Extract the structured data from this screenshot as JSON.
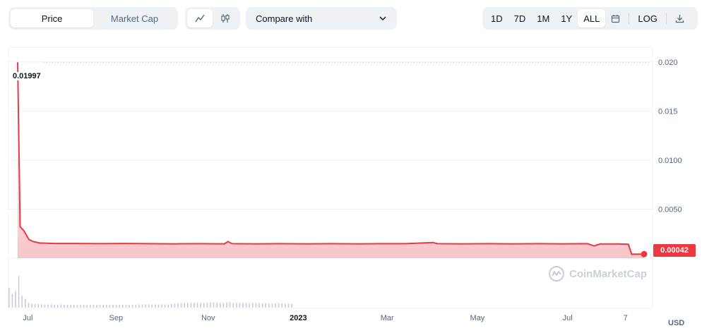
{
  "toolbar": {
    "type_options": [
      "Price",
      "Market Cap"
    ],
    "type_selected": "Price",
    "compare_label": "Compare with",
    "ranges": [
      "1D",
      "7D",
      "1M",
      "1Y",
      "ALL"
    ],
    "range_selected": "ALL",
    "log_label": "LOG"
  },
  "watermark_text": "CoinMarketCap",
  "currency_label": "USD",
  "peak_label": "0.01997",
  "last_price_label": "0.00042",
  "colors": {
    "line": "#ea3943",
    "fill_top": "#ffffff",
    "fill_bottom": "#f6c6c9",
    "grid": "#eff2f5",
    "axis_text": "#58667e"
  },
  "chart_data": {
    "type": "area",
    "ylabel": "",
    "xlabel": "",
    "ylim": [
      0,
      0.0215
    ],
    "yticks": [
      "0.020",
      "0.015",
      "0.0100",
      "0.0050"
    ],
    "ytick_values": [
      0.02,
      0.015,
      0.01,
      0.005
    ],
    "xticks": [
      {
        "label": "Jul",
        "x": 0.03
      },
      {
        "label": "Sep",
        "x": 0.167
      },
      {
        "label": "Nov",
        "x": 0.31
      },
      {
        "label": "2023",
        "x": 0.45
      },
      {
        "label": "Mar",
        "x": 0.588
      },
      {
        "label": "May",
        "x": 0.728
      },
      {
        "label": "Jul",
        "x": 0.868
      },
      {
        "label": "7",
        "x": 0.958
      }
    ],
    "series": [
      {
        "points": [
          [
            0.0,
            0.01997
          ],
          [
            0.004,
            0.0032
          ],
          [
            0.01,
            0.0028
          ],
          [
            0.018,
            0.0019
          ],
          [
            0.025,
            0.0017
          ],
          [
            0.035,
            0.00155
          ],
          [
            0.06,
            0.0015
          ],
          [
            0.09,
            0.0015
          ],
          [
            0.13,
            0.00148
          ],
          [
            0.17,
            0.0015
          ],
          [
            0.21,
            0.00148
          ],
          [
            0.25,
            0.00147
          ],
          [
            0.29,
            0.00148
          ],
          [
            0.33,
            0.00147
          ],
          [
            0.336,
            0.0017
          ],
          [
            0.342,
            0.00148
          ],
          [
            0.38,
            0.00147
          ],
          [
            0.42,
            0.00148
          ],
          [
            0.46,
            0.00147
          ],
          [
            0.5,
            0.00148
          ],
          [
            0.54,
            0.00147
          ],
          [
            0.58,
            0.00148
          ],
          [
            0.62,
            0.00148
          ],
          [
            0.663,
            0.0016
          ],
          [
            0.67,
            0.00148
          ],
          [
            0.71,
            0.00147
          ],
          [
            0.75,
            0.00148
          ],
          [
            0.79,
            0.00147
          ],
          [
            0.83,
            0.00148
          ],
          [
            0.87,
            0.00147
          ],
          [
            0.91,
            0.00148
          ],
          [
            0.92,
            0.00125
          ],
          [
            0.93,
            0.00145
          ],
          [
            0.96,
            0.00145
          ],
          [
            0.975,
            0.00142
          ],
          [
            0.98,
            0.00042
          ],
          [
            1.0,
            0.00042
          ]
        ]
      }
    ],
    "volume": [
      0.5,
      0.35,
      0.42,
      0.8,
      0.3,
      0.22,
      0.12,
      0.1,
      0.09,
      0.09,
      0.08,
      0.08,
      0.08,
      0.08,
      0.07,
      0.07,
      0.08,
      0.07,
      0.07,
      0.07,
      0.07,
      0.07,
      0.07,
      0.07,
      0.07,
      0.07,
      0.07,
      0.07,
      0.07,
      0.07,
      0.07,
      0.07,
      0.07,
      0.07,
      0.07,
      0.07,
      0.07,
      0.07,
      0.07,
      0.07,
      0.08,
      0.08,
      0.08,
      0.08,
      0.08,
      0.08,
      0.08,
      0.08,
      0.08,
      0.08,
      0.09,
      0.1,
      0.11,
      0.11,
      0.12,
      0.12,
      0.13,
      0.12,
      0.12,
      0.12,
      0.12,
      0.13,
      0.13,
      0.13,
      0.13,
      0.12,
      0.12,
      0.13,
      0.13,
      0.12,
      0.12,
      0.12,
      0.12,
      0.12,
      0.11,
      0.12,
      0.12,
      0.11,
      0.11,
      0.11,
      0.11,
      0.1,
      0.11,
      0.12,
      0.11,
      0.1,
      0.1,
      0.1
    ]
  }
}
